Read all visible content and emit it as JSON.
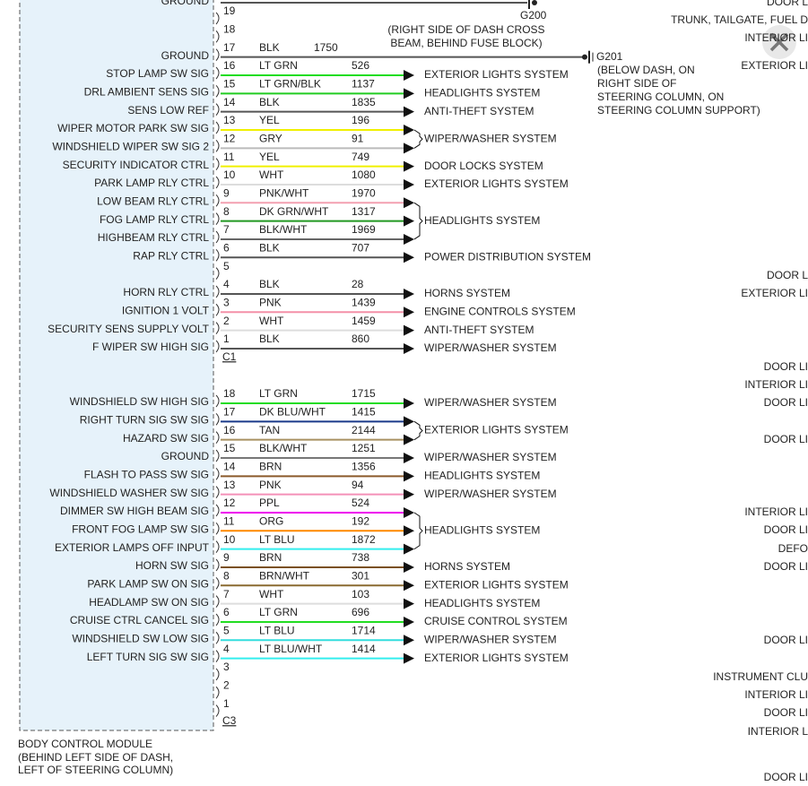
{
  "module": {
    "name": "BODY CONTROL MODULE",
    "location": [
      "(BEHIND LEFT SIDE OF DASH,",
      "LEFT OF STEERING COLUMN)"
    ]
  },
  "top_ground": {
    "signal": "GROUND",
    "ground": "G200",
    "location": [
      "(RIGHT SIDE OF DASH CROSS",
      "BEAM, BEHIND FUSE BLOCK)"
    ]
  },
  "connectors": [
    {
      "name": "C1",
      "pins": [
        {
          "pin": "19"
        },
        {
          "pin": "18"
        },
        {
          "pin": "17",
          "signal": "GROUND",
          "wire": "BLK",
          "circuit": "1750",
          "stroke": "#555555",
          "ground": "G201",
          "location": [
            "(BELOW DASH, ON",
            "RIGHT SIDE OF",
            "STEERING COLUMN, ON",
            "STEERING COLUMN SUPPORT)"
          ]
        },
        {
          "pin": "16",
          "signal": "STOP LAMP SW SIG",
          "wire": "LT GRN",
          "circuit": "526",
          "stroke": "#22dd22"
        },
        {
          "pin": "15",
          "signal": "DRL AMBIENT SENS SIG",
          "wire": "LT GRN/BLK",
          "circuit": "1137",
          "stroke": "#22cc22"
        },
        {
          "pin": "14",
          "signal": "SENS LOW REF",
          "wire": "BLK",
          "circuit": "1835",
          "stroke": "#555555"
        },
        {
          "pin": "13",
          "signal": "WIPER MOTOR PARK SW SIG",
          "wire": "YEL",
          "circuit": "196",
          "stroke": "#f0f000"
        },
        {
          "pin": "12",
          "signal": "WINDSHIELD WIPER SW SIG 2",
          "wire": "GRY",
          "circuit": "91",
          "stroke": "#bbbbbb"
        },
        {
          "pin": "11",
          "signal": "SECURITY INDICATOR CTRL",
          "wire": "YEL",
          "circuit": "749",
          "stroke": "#f0f000"
        },
        {
          "pin": "10",
          "signal": "PARK LAMP RLY CTRL",
          "wire": "WHT",
          "circuit": "1080",
          "stroke": "#dddddd"
        },
        {
          "pin": "9",
          "signal": "LOW BEAM RLY CTRL",
          "wire": "PNK/WHT",
          "circuit": "1970",
          "stroke": "#f4a0b0"
        },
        {
          "pin": "8",
          "signal": "FOG LAMP RLY CTRL",
          "wire": "DK GRN/WHT",
          "circuit": "1317",
          "stroke": "#229922"
        },
        {
          "pin": "7",
          "signal": "HIGHBEAM RLY CTRL",
          "wire": "BLK/WHT",
          "circuit": "1969",
          "stroke": "#666666"
        },
        {
          "pin": "6",
          "signal": "RAP RLY CTRL",
          "wire": "BLK",
          "circuit": "707",
          "stroke": "#555555"
        },
        {
          "pin": "5"
        },
        {
          "pin": "4",
          "signal": "HORN RLY CTRL",
          "wire": "BLK",
          "circuit": "28",
          "stroke": "#555555"
        },
        {
          "pin": "3",
          "signal": "IGNITION 1 VOLT",
          "wire": "PNK",
          "circuit": "1439",
          "stroke": "#f490a8"
        },
        {
          "pin": "2",
          "signal": "SECURITY SENS SUPPLY VOLT",
          "wire": "WHT",
          "circuit": "1459",
          "stroke": "#dddddd"
        },
        {
          "pin": "1",
          "signal": "F WIPER SW HIGH SIG",
          "wire": "BLK",
          "circuit": "860",
          "stroke": "#555555"
        }
      ],
      "destinations": [
        "EXTERIOR LIGHTS SYSTEM",
        "HEADLIGHTS SYSTEM",
        "ANTI-THEFT SYSTEM",
        "WIPER/WASHER SYSTEM",
        "DOOR LOCKS SYSTEM",
        "EXTERIOR LIGHTS SYSTEM",
        "HEADLIGHTS SYSTEM",
        "POWER DISTRIBUTION SYSTEM",
        "HORNS SYSTEM",
        "ENGINE CONTROLS SYSTEM",
        "ANTI-THEFT SYSTEM",
        "WIPER/WASHER SYSTEM"
      ]
    },
    {
      "name": "C3",
      "pins": [
        {
          "pin": "18",
          "signal": "WINDSHIELD SW HIGH SIG",
          "wire": "LT GRN",
          "circuit": "1715",
          "stroke": "#22dd22"
        },
        {
          "pin": "17",
          "signal": "RIGHT TURN SIG SW SIG",
          "wire": "DK BLU/WHT",
          "circuit": "1415",
          "stroke": "#1a3a8a"
        },
        {
          "pin": "16",
          "signal": "HAZARD SW SIG",
          "wire": "TAN",
          "circuit": "2144",
          "stroke": "#a89060"
        },
        {
          "pin": "15",
          "signal": "GROUND",
          "wire": "BLK/WHT",
          "circuit": "1251",
          "stroke": "#777777"
        },
        {
          "pin": "14",
          "signal": "FLASH TO PASS SW SIG",
          "wire": "BRN",
          "circuit": "1356",
          "stroke": "#8b5a2b"
        },
        {
          "pin": "13",
          "signal": "WINDSHIELD WASHER SW SIG",
          "wire": "PNK",
          "circuit": "94",
          "stroke": "#f490b8"
        },
        {
          "pin": "12",
          "signal": "DIMMER SW HIGH BEAM SIG",
          "wire": "PPL",
          "circuit": "524",
          "stroke": "#ee00ee"
        },
        {
          "pin": "11",
          "signal": "FRONT FOG LAMP SW SIG",
          "wire": "ORG",
          "circuit": "192",
          "stroke": "#ff8800"
        },
        {
          "pin": "10",
          "signal": "EXTERIOR LAMPS OFF INPUT",
          "wire": "LT BLU",
          "circuit": "1872",
          "stroke": "#33eeee"
        },
        {
          "pin": "9",
          "signal": "HORN SW SIG",
          "wire": "BRN",
          "circuit": "738",
          "stroke": "#7a5020"
        },
        {
          "pin": "8",
          "signal": "PARK LAMP SW ON SIG",
          "wire": "BRN/WHT",
          "circuit": "301",
          "stroke": "#8a6a30"
        },
        {
          "pin": "7",
          "signal": "HEADLAMP SW ON SIG",
          "wire": "WHT",
          "circuit": "103",
          "stroke": "#dddddd"
        },
        {
          "pin": "6",
          "signal": "CRUISE CTRL CANCEL SIG",
          "wire": "LT GRN",
          "circuit": "696",
          "stroke": "#22dd22"
        },
        {
          "pin": "5",
          "signal": "WINDSHIELD SW LOW SIG",
          "wire": "LT BLU",
          "circuit": "1714",
          "stroke": "#33dddd"
        },
        {
          "pin": "4",
          "signal": "LEFT TURN SIG SW SIG",
          "wire": "LT BLU/WHT",
          "circuit": "1414",
          "stroke": "#33eeee"
        },
        {
          "pin": "3"
        },
        {
          "pin": "2"
        },
        {
          "pin": "1"
        }
      ],
      "destinations": [
        "WIPER/WASHER SYSTEM",
        "EXTERIOR LIGHTS SYSTEM",
        "WIPER/WASHER SYSTEM",
        "HEADLIGHTS SYSTEM",
        "WIPER/WASHER SYSTEM",
        "HEADLIGHTS SYSTEM",
        "HORNS SYSTEM",
        "EXTERIOR LIGHTS SYSTEM",
        "HEADLIGHTS SYSTEM",
        "CRUISE CONTROL SYSTEM",
        "WIPER/WASHER SYSTEM",
        "EXTERIOR LIGHTS SYSTEM"
      ]
    }
  ],
  "side_labels": [
    "DOOR L",
    "TRUNK, TAILGATE, FUEL D",
    "INTERIOR LI",
    "EXTERIOR LI",
    "DOOR L",
    "EXTERIOR LI",
    "DOOR LI",
    "INTERIOR LI",
    "DOOR LI",
    "DOOR LI",
    "INTERIOR LI",
    "DOOR LI",
    "DEFO",
    "DOOR LI",
    "DOOR LI",
    "INSTRUMENT CLU",
    "INTERIOR LI",
    "DOOR LI",
    "INTERIOR L",
    "DOOR LI"
  ]
}
